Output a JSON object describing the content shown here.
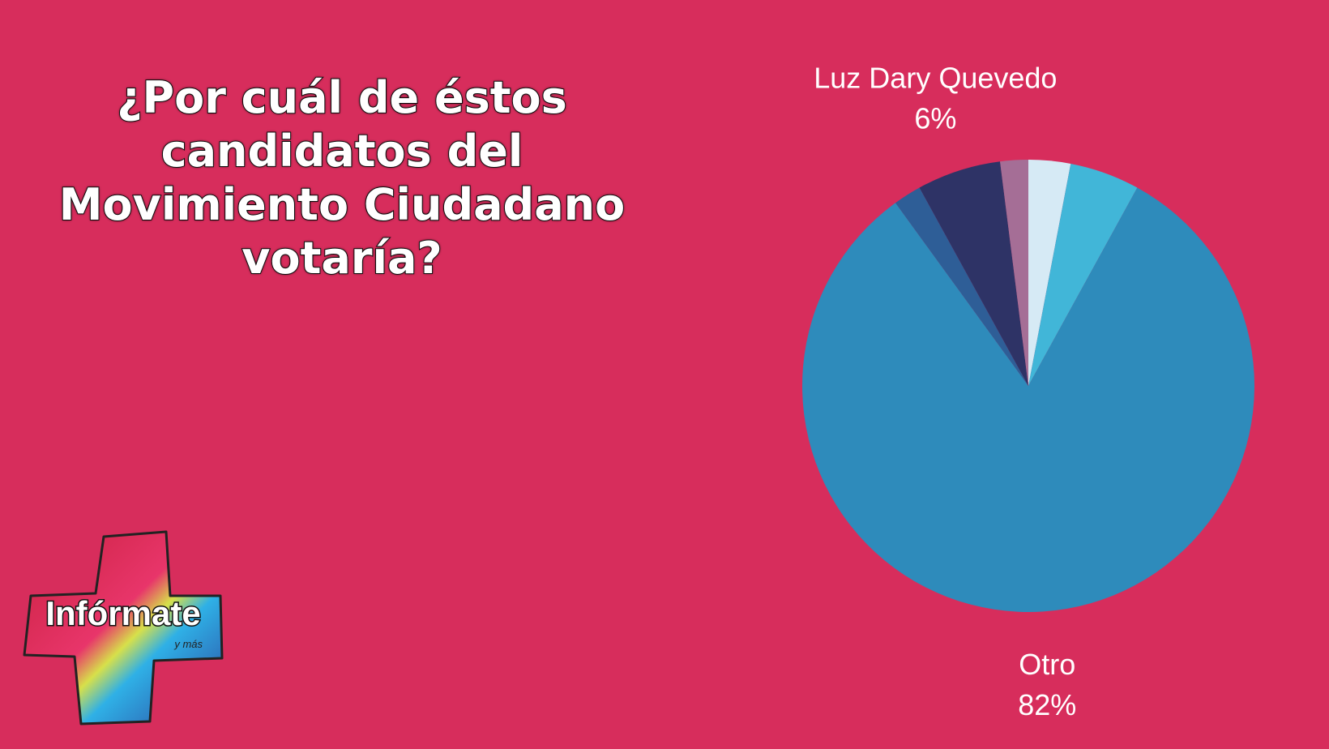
{
  "chart_data": {
    "type": "pie",
    "title": "¿Por cuál de éstos candidatos del Movimiento Ciudadano votaría?",
    "categories": [
      null,
      null,
      "Otro",
      null,
      "Luz Dary Quevedo",
      null
    ],
    "values": [
      3,
      5,
      82,
      2,
      6,
      2
    ],
    "value_labels": [
      null,
      null,
      "82%",
      null,
      "6%",
      null
    ],
    "colors": [
      "#d6eaf5",
      "#41b6d8",
      "#2e8bbb",
      "#2e5e97",
      "#2e3366",
      "#a56e96"
    ]
  },
  "logo": {
    "text": "Infórmate",
    "subtext": "y más"
  }
}
